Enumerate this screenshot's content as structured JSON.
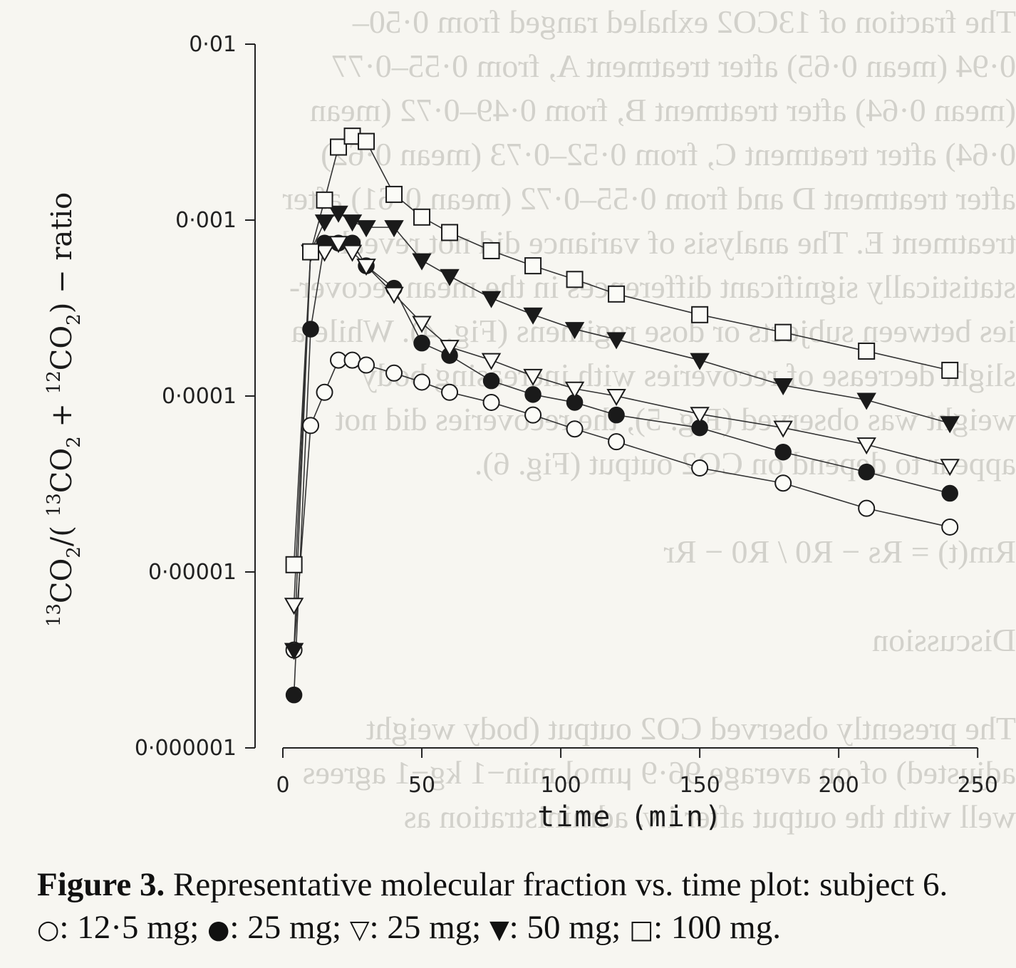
{
  "chart_data": {
    "type": "line",
    "xlabel": "time (min)",
    "ylabel": "CO2 / ( CO2 + CO2 ) − ratio",
    "ylabel_isotopes": [
      "13",
      "2",
      "13",
      "2",
      "12",
      "2"
    ],
    "xlim": [
      -10,
      252
    ],
    "ylim": [
      1e-06,
      0.01
    ],
    "yscale": "log",
    "x_ticks": [
      0,
      50,
      100,
      150,
      200,
      250
    ],
    "x_tick_labels": [
      "0",
      "50",
      "100",
      "150",
      "200",
      "250"
    ],
    "y_ticks": [
      1e-06,
      1e-05,
      0.0001,
      0.001,
      0.01
    ],
    "y_tick_labels": [
      "0·000001",
      "0·00001",
      "0·0001",
      "0·001",
      "0·01"
    ],
    "grid": false,
    "x": [
      4,
      10,
      15,
      20,
      25,
      30,
      40,
      50,
      60,
      75,
      90,
      105,
      120,
      150,
      180,
      210,
      240
    ],
    "series": [
      {
        "marker": "open-circle",
        "values": [
          3.6e-06,
          6.8e-05,
          0.000105,
          0.00016,
          0.00016,
          0.00015,
          0.000135,
          0.00012,
          0.000105,
          9.2e-05,
          7.8e-05,
          6.5e-05,
          5.5e-05,
          3.9e-05,
          3.2e-05,
          2.3e-05,
          1.8e-05
        ]
      },
      {
        "marker": "filled-circle",
        "values": [
          2e-06,
          0.00024,
          0.00074,
          0.00074,
          0.00074,
          0.00055,
          0.00041,
          0.0002,
          0.00017,
          0.000122,
          0.000102,
          9.2e-05,
          7.8e-05,
          6.6e-05,
          4.8e-05,
          3.7e-05,
          2.8e-05
        ]
      },
      {
        "marker": "open-triangle-down",
        "values": [
          6.5e-06,
          0.00066,
          0.00066,
          0.00074,
          0.00066,
          0.00055,
          0.00038,
          0.00026,
          0.00019,
          0.00016,
          0.00013,
          0.00011,
          0.0001,
          7.9e-05,
          6.6e-05,
          5.3e-05,
          4e-05
        ]
      },
      {
        "marker": "filled-triangle-down",
        "values": [
          3.6e-06,
          0.00066,
          0.00098,
          0.0011,
          0.00098,
          0.00091,
          0.00091,
          0.00059,
          0.00048,
          0.00036,
          0.00029,
          0.00024,
          0.00021,
          0.00016,
          0.000115,
          9.5e-05,
          7e-05
        ]
      },
      {
        "marker": "open-square",
        "values": [
          1.1e-05,
          0.00066,
          0.0013,
          0.0026,
          0.003,
          0.0028,
          0.0014,
          0.00104,
          0.00085,
          0.00067,
          0.00055,
          0.00046,
          0.00038,
          0.00029,
          0.00023,
          0.00018,
          0.00014
        ]
      }
    ]
  },
  "caption": {
    "label": "Figure 3.",
    "line1": " Representative molecular fraction vs. time plot: subject 6.",
    "entries": [
      {
        "symbol": "○",
        "text": ": 12·5 mg; "
      },
      {
        "symbol": "●",
        "text": ": 25 mg; "
      },
      {
        "symbol": "▽",
        "text": ": 25 mg; "
      },
      {
        "symbol": "▼",
        "text": ": 50 mg; "
      },
      {
        "symbol": "□",
        "text": ": 100 mg."
      }
    ]
  },
  "background_text": [
    "The fraction of 13CO2 exhaled ranged from 0·50–",
    "0·94 (mean 0·65) after treatment A, from 0·55–0·77",
    "(mean 0·64) after treatment B, from 0·49–0·72 (mean",
    "0·64) after treatment C, from 0·52–0·73 (mean 0·62)",
    "after treatment D and from 0·55–0·72 (mean 0·61) after",
    "treatment E. The analysis of variance did not reveal",
    "statistically significant differences in the mean recover-",
    "ies between subjects or dose regimens (Fig. 4). While a",
    "slight decrease of recoveries with increasing body",
    "weight was observed (Fig. 5), the recoveries did not",
    "appear to depend on CO2 output (Fig. 6).",
    "",
    "Rm(t) = Rs − R0 / R0 − Rr",
    "",
    "Discussion",
    "",
    "The presently observed CO2 output (body weight",
    "adjusted) of on average 96·9 μmol min−1 kg−1 agrees",
    "well with the output after i.v. administration as"
  ]
}
